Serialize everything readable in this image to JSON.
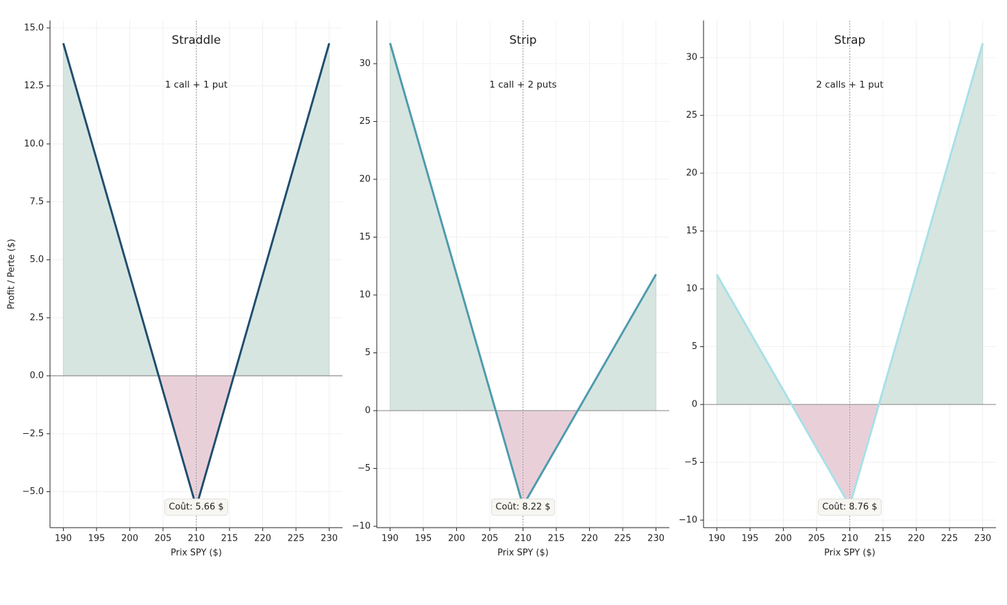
{
  "chart_data": [
    {
      "type": "line",
      "title": "Straddle",
      "subtitle": "1 call + 1 put",
      "annotation": "Coût: 5.66 $",
      "xlabel": "Prix SPY ($)",
      "ylabel": "Profit / Perte ($)",
      "x": [
        190,
        210,
        230
      ],
      "values": [
        14.34,
        -5.66,
        14.34
      ],
      "color": "#1f4e6e",
      "vline": 210,
      "xlim": [
        188,
        232
      ],
      "xticks": [
        190,
        195,
        200,
        205,
        210,
        215,
        220,
        225,
        230
      ],
      "ylim": [
        -6.55,
        15.32
      ],
      "yticks": [
        {
          "value": -5,
          "label": "−5.0"
        },
        {
          "value": -2.5,
          "label": "−2.5"
        },
        {
          "value": 0,
          "label": "0.0"
        },
        2.5,
        {
          "value": 5,
          "label": "5.0"
        },
        7.5,
        {
          "value": 10,
          "label": "10.0"
        },
        12.5,
        {
          "value": 15,
          "label": "15.0"
        }
      ],
      "grid": true
    },
    {
      "type": "line",
      "title": "Strip",
      "subtitle": "1 call + 2 puts",
      "annotation": "Coût: 8.22 $",
      "xlabel": "Prix SPY ($)",
      "x": [
        190,
        210,
        230
      ],
      "values": [
        31.78,
        -8.22,
        11.78
      ],
      "color": "#4e9aae",
      "vline": 210,
      "xlim": [
        188,
        232
      ],
      "xticks": [
        190,
        195,
        200,
        205,
        210,
        215,
        220,
        225,
        230
      ],
      "ylim": [
        -10.12,
        33.73
      ],
      "yticks": [
        {
          "value": -10,
          "label": "−10"
        },
        {
          "value": -5,
          "label": "−5"
        },
        0,
        5,
        10,
        15,
        20,
        25,
        30
      ],
      "grid": true
    },
    {
      "type": "line",
      "title": "Strap",
      "subtitle": "2 calls + 1 put",
      "annotation": "Coût: 8.76 $",
      "xlabel": "Prix SPY ($)",
      "x": [
        190,
        210,
        230
      ],
      "values": [
        11.24,
        -8.76,
        31.24
      ],
      "color": "#a8e0e8",
      "vline": 210,
      "xlim": [
        188,
        232
      ],
      "xticks": [
        190,
        195,
        200,
        205,
        210,
        215,
        220,
        225,
        230
      ],
      "ylim": [
        -10.65,
        33.2
      ],
      "yticks": [
        {
          "value": -10,
          "label": "−10"
        },
        {
          "value": -5,
          "label": "−5"
        },
        0,
        5,
        10,
        15,
        20,
        25,
        30
      ],
      "grid": true
    }
  ]
}
